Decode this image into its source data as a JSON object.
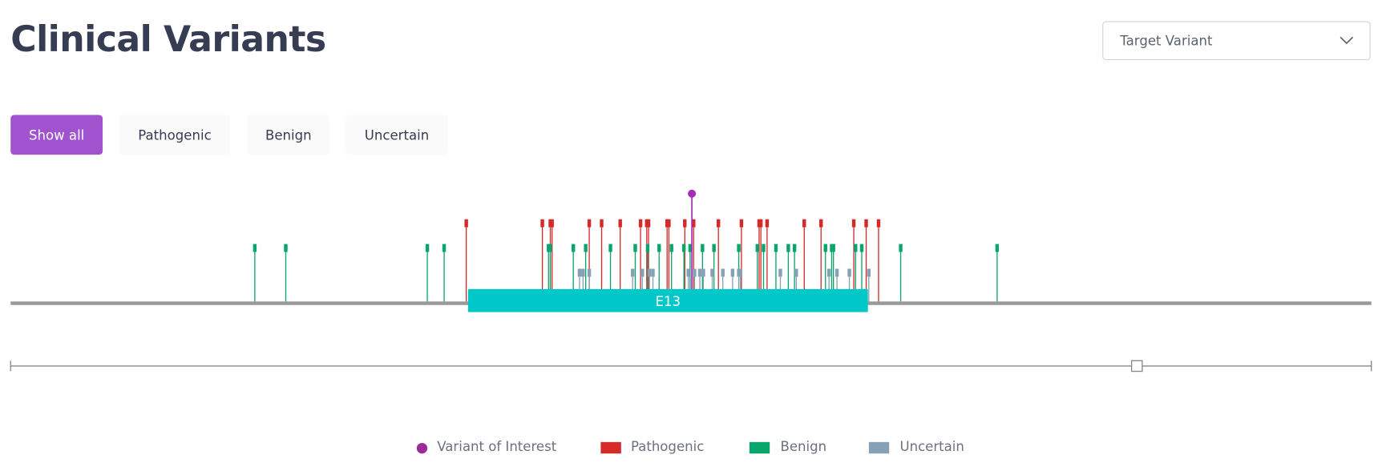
{
  "header": {
    "title": "Clinical Variants"
  },
  "dropdown": {
    "label": "Target Variant",
    "icon": "chevron-down-icon"
  },
  "filters": [
    {
      "label": "Show all",
      "active": true
    },
    {
      "label": "Pathogenic",
      "active": false
    },
    {
      "label": "Benign",
      "active": false
    },
    {
      "label": "Uncertain",
      "active": false
    }
  ],
  "track": {
    "exon_label": "E13"
  },
  "colors": {
    "interest": "#a52bb8",
    "pathogenic": "#d42a2a",
    "benign": "#0aa56c",
    "uncertain": "#86a0b6",
    "exon": "#00c8c8",
    "track": "#999999",
    "accent": "#a152cf"
  },
  "legend": [
    {
      "label": "Variant of Interest",
      "color": "#9b2a9b"
    },
    {
      "label": "Pathogenic",
      "color": "#d42a2a"
    },
    {
      "label": "Benign",
      "color": "#0aa56c"
    },
    {
      "label": "Uncertain",
      "color": "#86a0b6"
    }
  ]
}
